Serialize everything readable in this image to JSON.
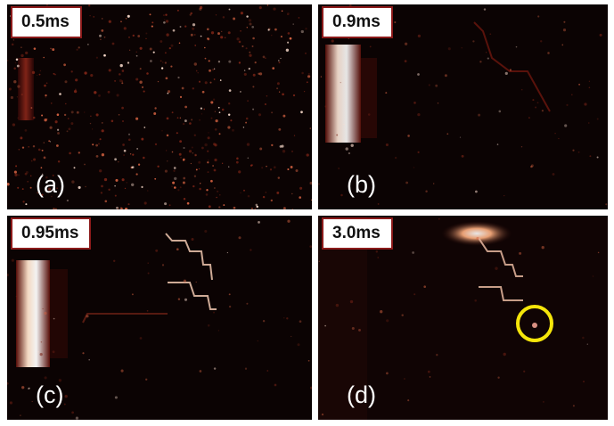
{
  "figure": {
    "panels": [
      {
        "id": "a",
        "time": "0.5ms",
        "letter": "(a)"
      },
      {
        "id": "b",
        "time": "0.9ms",
        "letter": "(b)"
      },
      {
        "id": "c",
        "time": "0.95ms",
        "letter": "(c)"
      },
      {
        "id": "d",
        "time": "3.0ms",
        "letter": "(d)"
      }
    ],
    "colors": {
      "background": "#0a0202",
      "label_border": "#8b1a1a",
      "highlight_circle": "#f5e50a",
      "glow": "#ffffff"
    }
  }
}
